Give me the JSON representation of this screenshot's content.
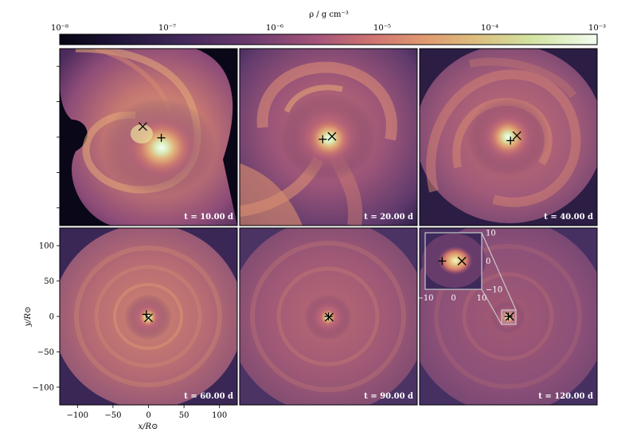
{
  "chart_data": {
    "type": "heatmap",
    "title": "",
    "colorbar": {
      "label": "ρ / g cm⁻³",
      "scale": "log",
      "range": [
        1e-08,
        0.001
      ],
      "tick_labels": [
        "10⁻⁸",
        "10⁻⁷",
        "10⁻⁶",
        "10⁻⁵",
        "10⁻⁴",
        "10⁻³"
      ],
      "colors": [
        "#080620",
        "#2a1b4a",
        "#5a3268",
        "#8a4a78",
        "#b8617a",
        "#d98a6e",
        "#e2b07a",
        "#d8d48e",
        "#d7e9b0",
        "#eefae6"
      ]
    },
    "xlabel": "x/R⊙",
    "ylabel": "y/R⊙",
    "xlim": [
      -125,
      125
    ],
    "ylim": [
      -125,
      125
    ],
    "x_ticks": [
      -100,
      -50,
      0,
      50,
      100
    ],
    "x_tick_labels": [
      "−100",
      "−50",
      "0",
      "50",
      "100"
    ],
    "y_ticks": [
      100,
      50,
      0,
      -50,
      -100
    ],
    "y_tick_labels": [
      "100",
      "50",
      "0",
      "−50",
      "−100"
    ],
    "panels": [
      {
        "time_label": "t = 10.00 d",
        "cross": [
          -8,
          15
        ],
        "plus": [
          18,
          -1
        ],
        "style": "a"
      },
      {
        "time_label": "t = 20.00 d",
        "cross": [
          5,
          1
        ],
        "plus": [
          -8,
          -3
        ],
        "style": "b"
      },
      {
        "time_label": "t = 40.00 d",
        "cross": [
          12,
          2
        ],
        "plus": [
          3,
          -5
        ],
        "style": "c"
      },
      {
        "time_label": "t = 60.00 d",
        "cross": [
          0,
          -2
        ],
        "plus": [
          -3,
          3
        ],
        "style": "d"
      },
      {
        "time_label": "t = 90.00 d",
        "cross": [
          1,
          -1
        ],
        "plus": [
          0,
          0
        ],
        "style": "e"
      },
      {
        "time_label": "t = 120.00 d",
        "cross": [
          2,
          0
        ],
        "plus": [
          0,
          0
        ],
        "style": "f"
      }
    ],
    "inset": {
      "xlim": [
        -10,
        10
      ],
      "ylim": [
        -10,
        10
      ],
      "x_tick_labels": [
        "−10",
        "0",
        "10"
      ],
      "y_tick_labels": [
        "10",
        "0",
        "−10"
      ],
      "cross": [
        3,
        0
      ],
      "plus": [
        -4,
        0
      ]
    },
    "grid": false
  }
}
